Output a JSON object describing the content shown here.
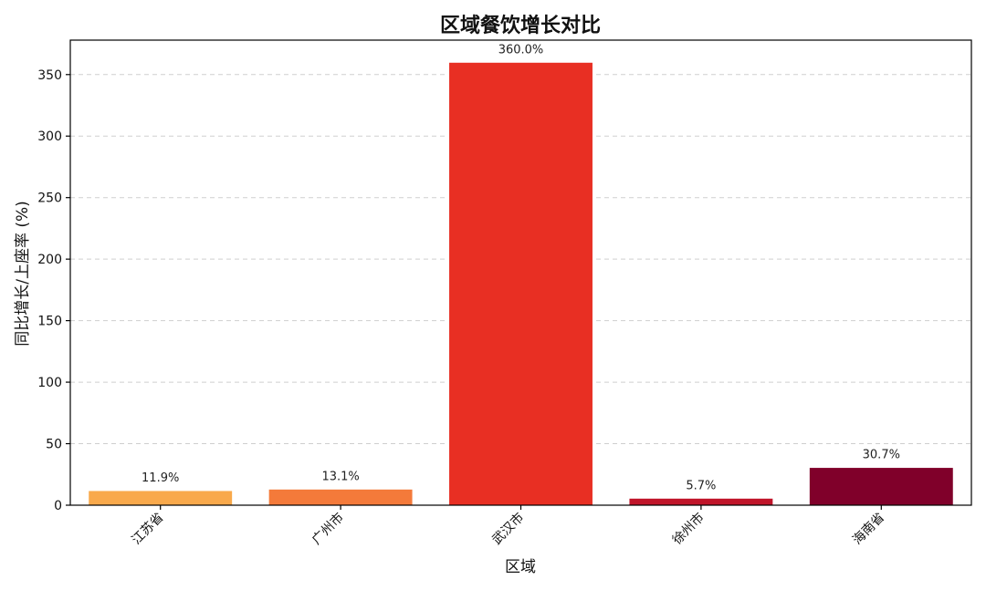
{
  "chart_data": {
    "type": "bar",
    "title": "区域餐饮增长对比",
    "xlabel": "区域",
    "ylabel": "同比增长/上座率 (%)",
    "categories": [
      "江苏省",
      "广州市",
      "武汉市",
      "徐州市",
      "海南省"
    ],
    "values": [
      11.9,
      13.1,
      360.0,
      5.7,
      30.7
    ],
    "data_labels": [
      "11.9%",
      "13.1%",
      "360.0%",
      "5.7%",
      "30.7%"
    ],
    "colors": [
      "#f9a94b",
      "#f47a3a",
      "#e82f23",
      "#c0152a",
      "#80002a"
    ],
    "ylim": [
      0,
      378
    ],
    "yticks": [
      0,
      50,
      100,
      150,
      200,
      250,
      300,
      350
    ],
    "grid": true,
    "xtick_rotation": 45
  }
}
